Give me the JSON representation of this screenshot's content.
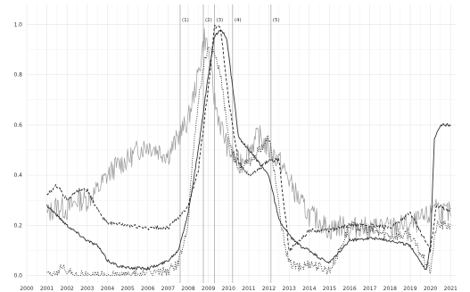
{
  "chart_data": {
    "type": "line",
    "title": "",
    "xlabel": "",
    "ylabel": "",
    "xlim": [
      2000,
      2021.3
    ],
    "ylim": [
      -0.03,
      1.08
    ],
    "grid": true,
    "x_ticks": [
      "2000",
      "2001",
      "2002",
      "2003",
      "2004",
      "2005",
      "2006",
      "2007",
      "2008",
      "2009",
      "2010",
      "2011",
      "2012",
      "2013",
      "2014",
      "2015",
      "2016",
      "2017",
      "2018",
      "2019",
      "2020",
      "2021"
    ],
    "y_ticks": [
      "0.0",
      "0.2",
      "0.4",
      "0.6",
      "0.8",
      "1.0"
    ],
    "events": [
      {
        "label": "(1)",
        "x": 2007.6
      },
      {
        "label": "(2)",
        "x": 2008.75
      },
      {
        "label": "(3)",
        "x": 2009.3
      },
      {
        "label": "(4)",
        "x": 2010.2
      },
      {
        "label": "(5)",
        "x": 2012.1
      }
    ],
    "series": [
      {
        "style": "solid-gray-volatile",
        "color": "#9a9a9a",
        "noise": 0.045,
        "x": [
          2001,
          2001.5,
          2002,
          2002.5,
          2003,
          2003.5,
          2004,
          2004.5,
          2005,
          2005.5,
          2006,
          2006.5,
          2007,
          2007.5,
          2008,
          2008.5,
          2008.8,
          2009,
          2009.3,
          2009.6,
          2010,
          2010.5,
          2011,
          2011.5,
          2012,
          2012.5,
          2013,
          2013.5,
          2014,
          2014.5,
          2015,
          2015.5,
          2016,
          2016.5,
          2017,
          2017.5,
          2018,
          2018.5,
          2019,
          2019.5,
          2020,
          2020.2,
          2020.5,
          2021
        ],
        "y": [
          0.24,
          0.28,
          0.26,
          0.3,
          0.3,
          0.34,
          0.4,
          0.44,
          0.46,
          0.5,
          0.52,
          0.5,
          0.48,
          0.55,
          0.62,
          0.8,
          0.95,
          0.9,
          0.7,
          0.6,
          0.5,
          0.45,
          0.5,
          0.56,
          0.5,
          0.46,
          0.38,
          0.3,
          0.24,
          0.22,
          0.18,
          0.2,
          0.18,
          0.2,
          0.18,
          0.2,
          0.19,
          0.2,
          0.2,
          0.22,
          0.24,
          0.3,
          0.25,
          0.25
        ]
      },
      {
        "style": "solid-dark",
        "color": "#333333",
        "noise": 0.006,
        "x": [
          2001,
          2001.5,
          2002,
          2002.5,
          2003,
          2003.5,
          2004,
          2004.5,
          2005,
          2005.5,
          2006,
          2006.5,
          2007,
          2007.5,
          2008,
          2008.5,
          2009,
          2009.3,
          2009.6,
          2009.9,
          2010.2,
          2010.5,
          2011,
          2011.5,
          2012,
          2012.5,
          2013,
          2013.5,
          2014,
          2014.5,
          2015,
          2016,
          2017,
          2018,
          2019,
          2019.8,
          2020,
          2020.2,
          2020.5,
          2021
        ],
        "y": [
          0.28,
          0.24,
          0.2,
          0.17,
          0.14,
          0.12,
          0.06,
          0.04,
          0.03,
          0.03,
          0.03,
          0.04,
          0.06,
          0.1,
          0.25,
          0.5,
          0.8,
          0.95,
          0.98,
          0.95,
          0.75,
          0.55,
          0.5,
          0.45,
          0.4,
          0.22,
          0.16,
          0.12,
          0.1,
          0.07,
          0.05,
          0.14,
          0.15,
          0.14,
          0.12,
          0.02,
          0.12,
          0.55,
          0.6,
          0.6
        ]
      },
      {
        "style": "dashed-dark",
        "color": "#222222",
        "noise": 0.008,
        "x": [
          2001,
          2001.5,
          2002,
          2002.5,
          2003,
          2003.5,
          2004,
          2005,
          2006,
          2007,
          2007.5,
          2008,
          2008.5,
          2009,
          2009.3,
          2009.6,
          2010,
          2010.5,
          2011,
          2011.5,
          2012,
          2012.5,
          2013,
          2014,
          2015,
          2016,
          2017,
          2018,
          2019,
          2020,
          2020.3,
          2021
        ],
        "y": [
          0.32,
          0.36,
          0.3,
          0.34,
          0.34,
          0.26,
          0.21,
          0.2,
          0.19,
          0.19,
          0.23,
          0.28,
          0.42,
          0.75,
          0.99,
          0.99,
          0.7,
          0.45,
          0.4,
          0.42,
          0.46,
          0.46,
          0.1,
          0.18,
          0.18,
          0.2,
          0.2,
          0.19,
          0.25,
          0.1,
          0.28,
          0.26
        ]
      },
      {
        "style": "dotted-dark",
        "color": "#333333",
        "noise": 0.02,
        "x": [
          2001,
          2001.5,
          2001.8,
          2002,
          2002.3,
          2003,
          2005,
          2007,
          2007.5,
          2008,
          2008.2,
          2008.5,
          2008.8,
          2009,
          2009.3,
          2009.6,
          2010,
          2010.5,
          2011,
          2011.5,
          2012,
          2012.3,
          2012.6,
          2013,
          2013.5,
          2014,
          2015,
          2015.5,
          2016,
          2017,
          2018,
          2019,
          2020,
          2020.3,
          2021
        ],
        "y": [
          0,
          0,
          0.05,
          0.02,
          0,
          0,
          0,
          0.02,
          0.05,
          0.2,
          0.45,
          0.7,
          0.85,
          0.9,
          0.88,
          0.8,
          0.55,
          0.42,
          0.45,
          0.5,
          0.55,
          0.4,
          0.2,
          0.05,
          0.03,
          0.05,
          0.02,
          0.1,
          0.2,
          0.18,
          0.16,
          0.16,
          0.02,
          0.2,
          0.2
        ]
      }
    ]
  }
}
